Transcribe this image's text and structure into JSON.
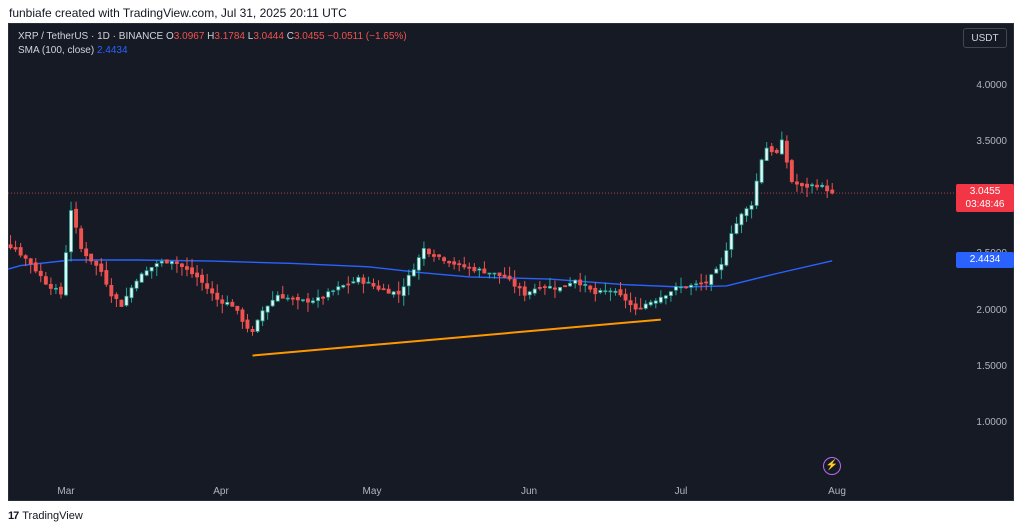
{
  "attribution": "funbiafe created with TradingView.com, Jul 31, 2025 20:11 UTC",
  "legend": {
    "symbol": "XRP / TetherUS · 1D · BINANCE",
    "o_key": "O",
    "o": "3.0967",
    "h_key": "H",
    "h": "3.1784",
    "l_key": "L",
    "l": "3.0444",
    "c_key": "C",
    "c": "3.0455",
    "change": "−0.0511 (−1.65%)",
    "sma_label": "SMA (100, close)",
    "sma_value": "2.4434"
  },
  "currency_button": "USDT",
  "price_axis": {
    "labels": [
      "4.0000",
      "3.5000",
      "3.0455",
      "2.5000",
      "2.4434",
      "2.0000",
      "1.5000",
      "1.0000"
    ],
    "last_price": "3.0455",
    "countdown": "03:48:46",
    "sma_tag": "2.4434"
  },
  "time_axis": {
    "labels": [
      "Mar",
      "Apr",
      "May",
      "Jun",
      "Jul",
      "Aug"
    ]
  },
  "footer": {
    "logo": "17",
    "brand": "TradingView"
  },
  "colors": {
    "background": "#161a25",
    "up": "#26a69a",
    "up_body": "#e9f7f2",
    "down": "#ef5350",
    "sma": "#2962ff",
    "trendline": "#ff9800",
    "last_price_tag": "#f23645"
  },
  "icons": {
    "alert": "lightning-bolt-icon"
  },
  "chart_data": {
    "type": "candlestick",
    "title": "XRP / TetherUS · 1D · BINANCE",
    "y_range": [
      0.5,
      4.4
    ],
    "grid": false,
    "series": [
      {
        "name": "XRP / TetherUS",
        "type": "candlestick",
        "close_anchors": [
          [
            "2025-02-12",
            2.7
          ],
          [
            "2025-02-15",
            2.65
          ],
          [
            "2025-02-19",
            2.55
          ],
          [
            "2025-02-22",
            2.42
          ],
          [
            "2025-02-25",
            2.25
          ],
          [
            "2025-02-27",
            2.18
          ],
          [
            "2025-02-28",
            2.15
          ],
          [
            "2025-03-02",
            2.9
          ],
          [
            "2025-03-04",
            2.55
          ],
          [
            "2025-03-06",
            2.45
          ],
          [
            "2025-03-08",
            2.35
          ],
          [
            "2025-03-10",
            2.15
          ],
          [
            "2025-03-12",
            2.05
          ],
          [
            "2025-03-15",
            2.28
          ],
          [
            "2025-03-19",
            2.42
          ],
          [
            "2025-03-22",
            2.45
          ],
          [
            "2025-03-27",
            2.3
          ],
          [
            "2025-03-31",
            2.1
          ],
          [
            "2025-04-03",
            2.05
          ],
          [
            "2025-04-06",
            1.85
          ],
          [
            "2025-04-07",
            1.8
          ],
          [
            "2025-04-09",
            2.0
          ],
          [
            "2025-04-12",
            2.14
          ],
          [
            "2025-04-16",
            2.08
          ],
          [
            "2025-04-20",
            2.1
          ],
          [
            "2025-04-24",
            2.2
          ],
          [
            "2025-04-28",
            2.28
          ],
          [
            "2025-05-02",
            2.2
          ],
          [
            "2025-05-06",
            2.15
          ],
          [
            "2025-05-08",
            2.3
          ],
          [
            "2025-05-11",
            2.55
          ],
          [
            "2025-05-13",
            2.5
          ],
          [
            "2025-05-18",
            2.4
          ],
          [
            "2025-05-23",
            2.35
          ],
          [
            "2025-05-27",
            2.3
          ],
          [
            "2025-05-31",
            2.15
          ],
          [
            "2025-06-03",
            2.22
          ],
          [
            "2025-06-07",
            2.2
          ],
          [
            "2025-06-10",
            2.28
          ],
          [
            "2025-06-14",
            2.15
          ],
          [
            "2025-06-17",
            2.18
          ],
          [
            "2025-06-20",
            2.1
          ],
          [
            "2025-06-22",
            2.0
          ],
          [
            "2025-06-23",
            2.04
          ],
          [
            "2025-06-26",
            2.1
          ],
          [
            "2025-06-30",
            2.2
          ],
          [
            "2025-07-03",
            2.22
          ],
          [
            "2025-07-06",
            2.25
          ],
          [
            "2025-07-09",
            2.4
          ],
          [
            "2025-07-11",
            2.7
          ],
          [
            "2025-07-13",
            2.85
          ],
          [
            "2025-07-15",
            2.95
          ],
          [
            "2025-07-17",
            3.35
          ],
          [
            "2025-07-18",
            3.45
          ],
          [
            "2025-07-20",
            3.4
          ],
          [
            "2025-07-21",
            3.5
          ],
          [
            "2025-07-23",
            3.15
          ],
          [
            "2025-07-25",
            3.1
          ],
          [
            "2025-07-28",
            3.12
          ],
          [
            "2025-07-30",
            3.08
          ],
          [
            "2025-07-31",
            3.0455
          ]
        ]
      },
      {
        "name": "SMA (100, close)",
        "type": "line",
        "points": [
          [
            "2025-02-12",
            2.3
          ],
          [
            "2025-02-20",
            2.4
          ],
          [
            "2025-03-02",
            2.45
          ],
          [
            "2025-03-15",
            2.45
          ],
          [
            "2025-03-30",
            2.44
          ],
          [
            "2025-04-15",
            2.42
          ],
          [
            "2025-04-30",
            2.39
          ],
          [
            "2025-05-10",
            2.34
          ],
          [
            "2025-05-20",
            2.3
          ],
          [
            "2025-06-05",
            2.28
          ],
          [
            "2025-06-20",
            2.23
          ],
          [
            "2025-07-01",
            2.21
          ],
          [
            "2025-07-10",
            2.22
          ],
          [
            "2025-07-20",
            2.33
          ],
          [
            "2025-07-31",
            2.4434
          ]
        ]
      },
      {
        "name": "Trendline",
        "type": "line",
        "points": [
          [
            "2025-04-07",
            1.6
          ],
          [
            "2025-06-27",
            1.92
          ]
        ]
      }
    ]
  }
}
